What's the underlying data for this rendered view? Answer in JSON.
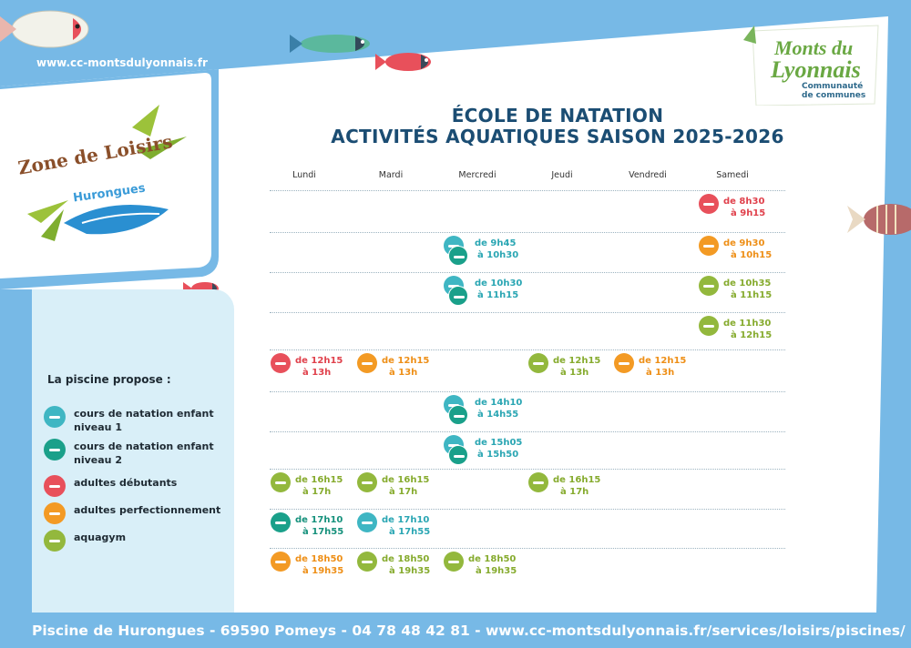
{
  "header": {
    "url": "www.cc-montsdulyonnais.fr",
    "logo_line1": "Monts du",
    "logo_line2": "Lyonnais",
    "logo_sub1": "Communauté",
    "logo_sub2": "de communes",
    "zone_line1": "Zone de Loisirs",
    "zone_line2": "Hurongues"
  },
  "title": {
    "line1": "ÉCOLE DE NATATION",
    "line2": "ACTIVITÉS AQUATIQUES SAISON 2025-2026"
  },
  "days": [
    "Lundi",
    "Mardi",
    "Mercredi",
    "Jeudi",
    "Vendredi",
    "Samedi"
  ],
  "colors": {
    "niveau1": "#3fb6c3",
    "niveau2": "#1aa08a",
    "debutants": "#e8505b",
    "perfectionnement": "#f39a24",
    "aquagym": "#93b83d"
  },
  "schedule": [
    {
      "day": "Samedi",
      "activity": "debutants",
      "start": "de 8h30",
      "end": "à 9h15"
    },
    {
      "day": "Mercredi",
      "activity": "niveau1-2",
      "start": "de 9h45",
      "end": "à 10h30"
    },
    {
      "day": "Samedi",
      "activity": "perfectionnement",
      "start": "de 9h30",
      "end": "à 10h15"
    },
    {
      "day": "Mercredi",
      "activity": "niveau1-2",
      "start": "de 10h30",
      "end": "à 11h15"
    },
    {
      "day": "Samedi",
      "activity": "aquagym",
      "start": "de 10h35",
      "end": "à 11h15"
    },
    {
      "day": "Samedi",
      "activity": "aquagym",
      "start": "de 11h30",
      "end": "à 12h15"
    },
    {
      "day": "Lundi",
      "activity": "debutants",
      "start": "de 12h15",
      "end": "à 13h"
    },
    {
      "day": "Mardi",
      "activity": "perfectionnement",
      "start": "de 12h15",
      "end": "à 13h"
    },
    {
      "day": "Jeudi",
      "activity": "aquagym",
      "start": "de 12h15",
      "end": "à 13h"
    },
    {
      "day": "Vendredi",
      "activity": "perfectionnement",
      "start": "de 12h15",
      "end": "à 13h"
    },
    {
      "day": "Mercredi",
      "activity": "niveau1-2",
      "start": "de 14h10",
      "end": "à 14h55"
    },
    {
      "day": "Mercredi",
      "activity": "niveau1-2",
      "start": "de 15h05",
      "end": "à 15h50"
    },
    {
      "day": "Lundi",
      "activity": "aquagym",
      "start": "de 16h15",
      "end": "à 17h"
    },
    {
      "day": "Mardi",
      "activity": "aquagym",
      "start": "de 16h15",
      "end": "à 17h"
    },
    {
      "day": "Jeudi",
      "activity": "aquagym",
      "start": "de 16h15",
      "end": "à 17h"
    },
    {
      "day": "Lundi",
      "activity": "niveau2",
      "start": "de 17h10",
      "end": "à 17h55"
    },
    {
      "day": "Mardi",
      "activity": "niveau1",
      "start": "de 17h10",
      "end": "à 17h55"
    },
    {
      "day": "Lundi",
      "activity": "perfectionnement",
      "start": "de 18h50",
      "end": "à 19h35"
    },
    {
      "day": "Mardi",
      "activity": "aquagym",
      "start": "de 18h50",
      "end": "à 19h35"
    },
    {
      "day": "Mercredi",
      "activity": "aquagym",
      "start": "de 18h50",
      "end": "à 19h35"
    }
  ],
  "legend": {
    "title": "La piscine propose :",
    "items": [
      {
        "key": "niveau1",
        "line1": "cours de natation enfant",
        "line2": "niveau 1",
        "icon": "child-swimmer-icon"
      },
      {
        "key": "niveau2",
        "line1": "cours de natation enfant",
        "line2": "niveau 2",
        "icon": "child-swimmer-icon"
      },
      {
        "key": "debutants",
        "line1": "adultes débutants",
        "line2": "",
        "icon": "adult-swimmer-icon"
      },
      {
        "key": "perfectionnement",
        "line1": "adultes perfectionnement",
        "line2": "",
        "icon": "adult-swimmer-icon"
      },
      {
        "key": "aquagym",
        "line1": "aquagym",
        "line2": "",
        "icon": "aquagym-icon"
      }
    ]
  },
  "footer": {
    "text": "Piscine de Hurongues - 69590 Pomeys - 04 78 48 42 81 - www.cc-montsdulyonnais.fr/services/loisirs/piscines/"
  }
}
